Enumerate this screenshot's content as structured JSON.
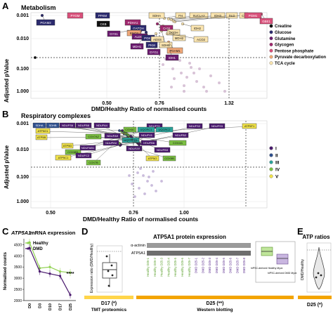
{
  "panelA": {
    "letter": "A",
    "title": "Metabolism",
    "ylabel": "Adjusted pValue",
    "xlabel": "DMD/Healthy Ratio of normalised counts",
    "yticks": [
      "0.001",
      "0.010",
      "0.100",
      "1.000"
    ],
    "xticks": [
      "0.50",
      "0.76",
      "1.32"
    ],
    "legend": [
      {
        "label": "Creatine",
        "color": "#111111"
      },
      {
        "label": "Glucose",
        "color": "#2b2a6e"
      },
      {
        "label": "Glutamine",
        "color": "#6a1a6e"
      },
      {
        "label": "Glycogen",
        "color": "#a0286e"
      },
      {
        "label": "Pentose phosphate",
        "color": "#d9507a"
      },
      {
        "label": "Pyruvate decarboxylation",
        "color": "#f0a878"
      },
      {
        "label": "TCA cycle",
        "color": "#fbe5b0"
      }
    ],
    "genes": [
      "PGAM2",
      "PYGM",
      "PFKM",
      "CKB",
      "PDHA1",
      "GAPDH",
      "ENO3",
      "ALDOA",
      "PGK1",
      "ADSS",
      "PKM",
      "SDHA",
      "FH",
      "SUCLA2",
      "IDH3",
      "DLD",
      "CS",
      "PGM1",
      "GBE1",
      "CKM",
      "GYS1",
      "OGDH",
      "MDH2",
      "SDHB",
      "MDH1",
      "ACO2",
      "GYG1",
      "IDH2",
      "PGAM1",
      "IDH1"
    ]
  },
  "panelB": {
    "letter": "B",
    "title": "Respiratory complexes",
    "ylabel": "Adjusted pValue",
    "xlabel": "DMD/Healthy Ratio of normalised counts",
    "yticks": [
      "0.001",
      "0.010",
      "0.100",
      "1.000"
    ],
    "xticks": [
      "0.50",
      "0.76",
      "1.00"
    ],
    "legend": [
      {
        "label": "I",
        "color": "#4a1a6e"
      },
      {
        "label": "II",
        "color": "#2e4f8e"
      },
      {
        "label": "III",
        "color": "#2aa39a"
      },
      {
        "label": "IV",
        "color": "#7cc043"
      },
      {
        "label": "V",
        "color": "#f0e24a"
      }
    ],
    "genes": [
      "SDHA",
      "SDHB",
      "NDUFS6",
      "NDUFB8",
      "NDUFA4",
      "ATP5F1",
      "NDUFS1",
      "NDUFS2",
      "NDUFS3",
      "COX6C",
      "UQCRC1",
      "UQCRC2",
      "NDUFV1",
      "NDUFB2",
      "ATP5G1",
      "ATP5B",
      "COX7A2",
      "NDUFA9",
      "UQCRFS1",
      "COX4I1",
      "ATP5D",
      "NDUFA5",
      "NDUFB6",
      "COX6B1",
      "NDUFA8",
      "ATP5C1",
      "NDUFC2",
      "COX7B",
      "NDUFAB1",
      "NDUFB3",
      "COX5B",
      "ATP5O"
    ]
  },
  "panelC": {
    "letter": "C",
    "title_gene": "ATP5A1",
    "title_rest": " mRNA expression",
    "ylabel": "Normalised counts",
    "yticks": [
      "2000",
      "2500",
      "3000",
      "3500",
      "4000",
      "4500"
    ],
    "xticks": [
      "D0",
      "D3",
      "D10",
      "D17",
      "D25"
    ],
    "legend": [
      {
        "label": "Healthy",
        "color": "#8fd14f"
      },
      {
        "label": "DMD",
        "color": "#4a1a6e"
      }
    ],
    "chart_data": {
      "type": "line",
      "categories": [
        "D0",
        "D3",
        "D10",
        "D17",
        "D25"
      ],
      "ylabel": "Normalised counts",
      "ylim": [
        2000,
        4700
      ],
      "series": [
        {
          "name": "Healthy",
          "values": [
            4600,
            3450,
            3500,
            3300,
            3250
          ]
        },
        {
          "name": "DMD",
          "values": [
            4350,
            3300,
            3200,
            3100,
            2250
          ]
        }
      ],
      "annotations": [
        "****"
      ]
    }
  },
  "panelD": {
    "letter": "D",
    "title": "ATP5A1 protein expression",
    "box_ylabel": "Expression ratio (DMD/Healthy)",
    "blot_labels": [
      "α-actinin",
      "ATP5A1"
    ],
    "lanes": [
      "Healthy D25-1",
      "Healthy D25-2",
      "Healthy D25-3",
      "Healthy D25-4",
      "Healthy D25-5",
      "Healthy D25-6",
      "Healthy D25-7",
      "DMD D25-1",
      "DMD D25-2",
      "DMD D25-3",
      "DMD D25-4",
      "DMD D25-5",
      "DMD D25-6",
      "DMD D25-7",
      "DMD D25-8"
    ],
    "inset_labels": [
      "hiPSC-derived Healthy Myot.",
      "hiPSC-derived DMD Myot."
    ],
    "bar_left_label": "D17 (*)",
    "bar_left_sub": "TMT proteomics",
    "bar_right_label": "D25 (**)",
    "bar_right_sub": "Western blotting"
  },
  "panelE": {
    "letter": "E",
    "title": "ATP ratios",
    "ylabel": "DMD/Healthy",
    "bar_label": "D25 (*)"
  }
}
